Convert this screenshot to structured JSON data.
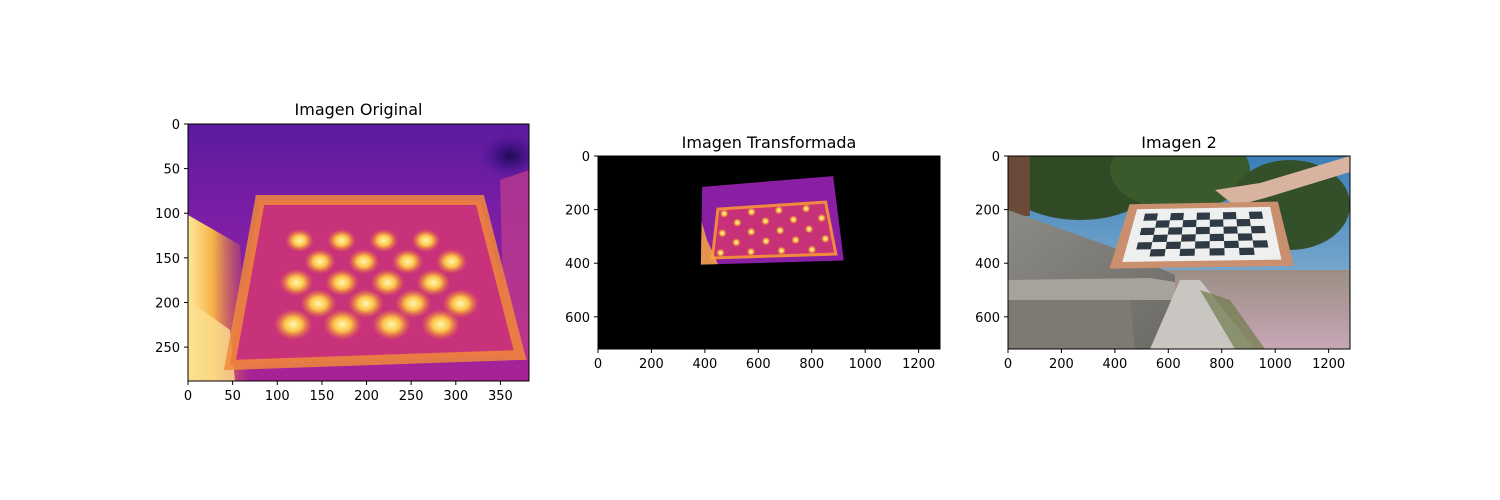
{
  "chart_data": [
    {
      "type": "image",
      "title": "Imagen Original",
      "xlim": [
        0,
        382
      ],
      "ylim": [
        288,
        0
      ],
      "xticks": [
        0,
        50,
        100,
        150,
        200,
        250,
        300,
        350
      ],
      "yticks": [
        0,
        50,
        100,
        150,
        200,
        250
      ],
      "content": "thermal image of a checkerboard calibration pattern",
      "colormap": "plasma",
      "grid": {
        "rows": 5,
        "cols": 8
      }
    },
    {
      "type": "image",
      "title": "Imagen Transformada",
      "xlim": [
        0,
        1280
      ],
      "ylim": [
        720,
        0
      ],
      "xticks": [
        0,
        200,
        400,
        600,
        800,
        1000,
        1200
      ],
      "yticks": [
        0,
        200,
        400,
        600
      ],
      "content": "perspective-warped thermal image on black background",
      "warped_quad": [
        [
          390,
          115
        ],
        [
          880,
          75
        ],
        [
          920,
          390
        ],
        [
          385,
          405
        ]
      ],
      "background_color": "#000000"
    },
    {
      "type": "image",
      "title": "Imagen 2",
      "xlim": [
        0,
        1280
      ],
      "ylim": [
        720,
        0
      ],
      "xticks": [
        0,
        200,
        400,
        600,
        800,
        1000,
        1200
      ],
      "yticks": [
        0,
        200,
        400,
        600
      ],
      "content": "photo of a hand holding a checkerboard board outdoors",
      "board_quad": [
        [
          455,
          180
        ],
        [
          1010,
          170
        ],
        [
          1070,
          410
        ],
        [
          380,
          420
        ]
      ],
      "grid": {
        "rows": 6,
        "cols": 9
      }
    }
  ]
}
